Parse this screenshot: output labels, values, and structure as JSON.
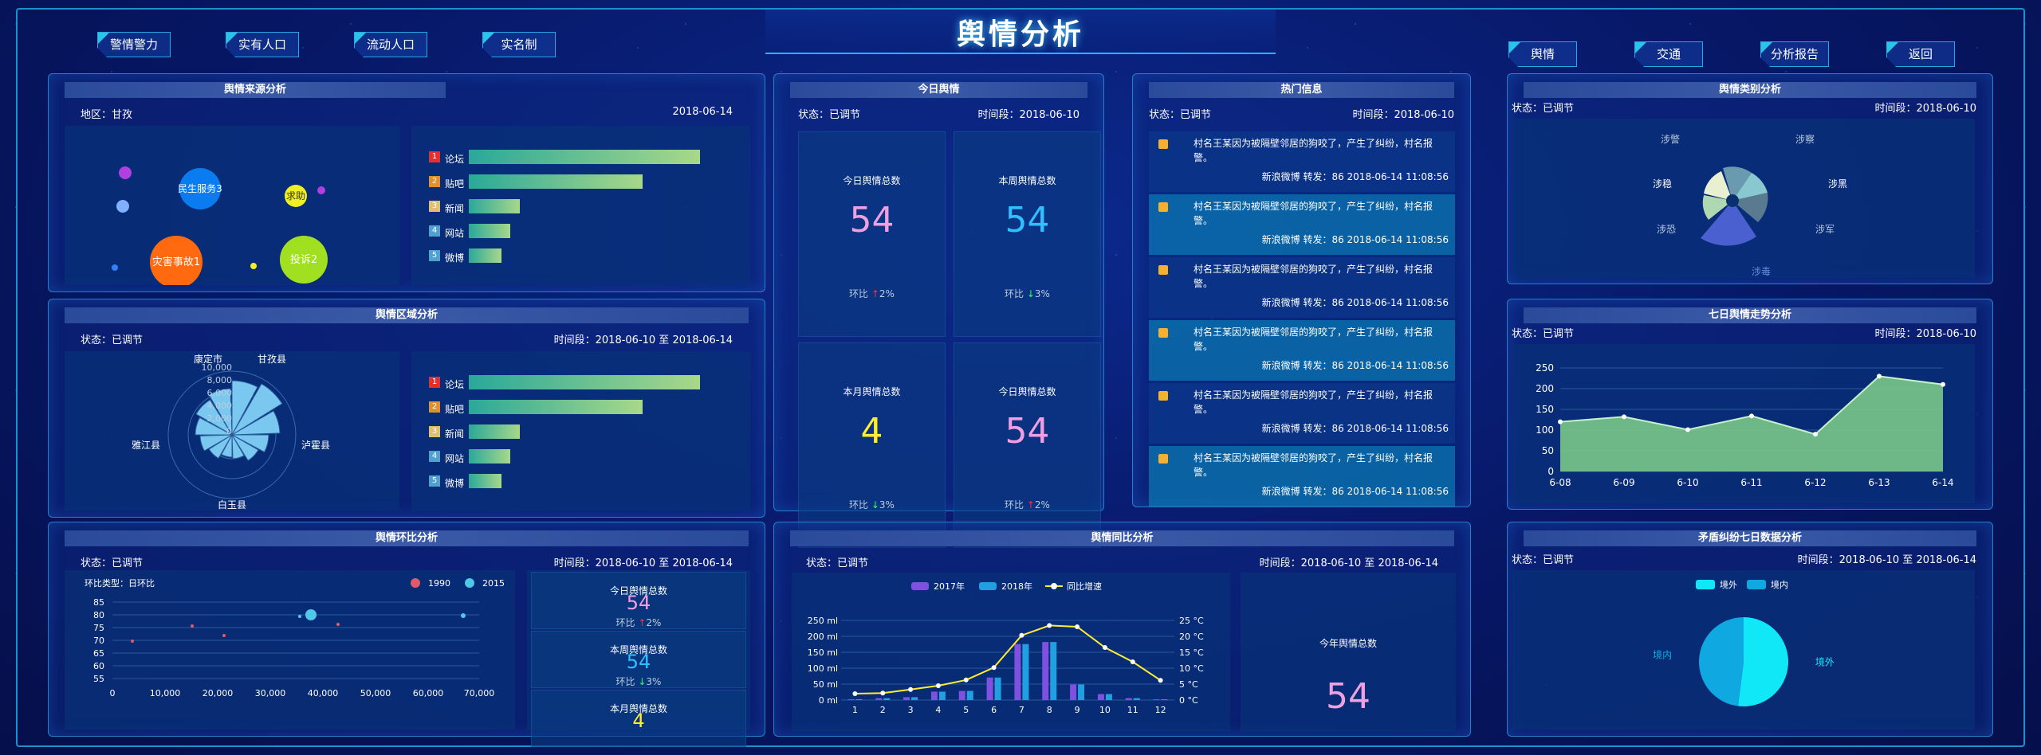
{
  "title": "舆情分析",
  "nav_left": [
    "警情警力",
    "实有人口",
    "流动人口",
    "实名制"
  ],
  "nav_right": [
    "舆情",
    "交通",
    "分析报告",
    "返回"
  ],
  "source": {
    "title": "舆情来源分析",
    "region": "地区：甘孜",
    "date": "2018-06-14",
    "bubbles": [
      "民生服务3",
      "求助",
      "投诉2",
      "灾害事故1"
    ],
    "ranks": [
      "1",
      "2",
      "3",
      "4",
      "5"
    ],
    "channels": [
      "论坛",
      "贴吧",
      "新闻",
      "网站",
      "微博"
    ],
    "bar_values": [
      100,
      75,
      22,
      18,
      14
    ]
  },
  "region": {
    "title": "舆情区域分析",
    "status": "状态：已调节",
    "date": "时间段：2018-06-10 至 2018-06-14",
    "radial_ticks": [
      "10,000",
      "8,000",
      "6,000",
      "4,000",
      "2,000",
      "0"
    ],
    "counties": [
      "康定市",
      "甘孜县",
      "泸霍县",
      "白玉县",
      "雅江县"
    ],
    "ranks": [
      "1",
      "2",
      "3",
      "4",
      "5"
    ],
    "channels": [
      "论坛",
      "贴吧",
      "新闻",
      "网站",
      "微博"
    ],
    "bar_values": [
      100,
      75,
      22,
      18,
      14
    ]
  },
  "ring": {
    "title": "舆情环比分析",
    "status": "状态：已调节",
    "date": "时间段：2018-06-10 至 2018-06-14",
    "subtitle": "环比类型：日环比",
    "legend": [
      "1990",
      "2015"
    ],
    "y_ticks": [
      "85",
      "80",
      "75",
      "70",
      "65",
      "60",
      "55"
    ],
    "x_ticks": [
      "0",
      "10,000",
      "20,000",
      "30,000",
      "40,000",
      "50,000",
      "60,000",
      "70,000"
    ],
    "stats": [
      {
        "label": "今日舆情总数",
        "value": "54",
        "chg": "环比",
        "pct": "2%",
        "dir": "up",
        "color": "#f0a0e0"
      },
      {
        "label": "本周舆情总数",
        "value": "54",
        "chg": "环比",
        "pct": "3%",
        "dir": "down",
        "color": "#30c0ff"
      },
      {
        "label": "本月舆情总数",
        "value": "4",
        "chg": "",
        "pct": "",
        "dir": "",
        "color": "#ffee30"
      }
    ]
  },
  "today": {
    "title": "今日舆情",
    "status": "状态：已调节",
    "date": "时间段：2018-06-10",
    "stats": [
      {
        "label": "今日舆情总数",
        "value": "54",
        "chg": "环比",
        "pct": "2%",
        "dir": "up",
        "color": "#f0a0e0"
      },
      {
        "label": "本周舆情总数",
        "value": "54",
        "chg": "环比",
        "pct": "3%",
        "dir": "down",
        "color": "#30c0ff"
      },
      {
        "label": "本月舆情总数",
        "value": "4",
        "chg": "环比",
        "pct": "3%",
        "dir": "down",
        "color": "#ffee30"
      },
      {
        "label": "今日舆情总数",
        "value": "54",
        "chg": "环比",
        "pct": "2%",
        "dir": "up",
        "color": "#f0a0e0"
      }
    ]
  },
  "hot": {
    "title": "热门信息",
    "status": "状态：已调节",
    "date": "时间段：2018-06-10",
    "items": [
      {
        "text": "村名王某因为被隔壁邻居的狗咬了，产生了纠纷，村名报警。",
        "src": "新浪微博 转发：86 2018-06-14 11:08:56"
      },
      {
        "text": "村名王某因为被隔壁邻居的狗咬了，产生了纠纷，村名报警。",
        "src": "新浪微博 转发：86 2018-06-14 11:08:56"
      },
      {
        "text": "村名王某因为被隔壁邻居的狗咬了，产生了纠纷，村名报警。",
        "src": "新浪微博 转发：86 2018-06-14 11:08:56"
      },
      {
        "text": "村名王某因为被隔壁邻居的狗咬了，产生了纠纷，村名报警。",
        "src": "新浪微博 转发：86 2018-06-14 11:08:56"
      },
      {
        "text": "村名王某因为被隔壁邻居的狗咬了，产生了纠纷，村名报警。",
        "src": "新浪微博 转发：86 2018-06-14 11:08:56"
      },
      {
        "text": "村名王某因为被隔壁邻居的狗咬了，产生了纠纷，村名报警。",
        "src": "新浪微博 转发：86 2018-06-14 11:08:56"
      }
    ]
  },
  "yoy": {
    "title": "舆情同比分析",
    "status": "状态：已调节",
    "date": "时间段：2018-06-10 至 2018-06-14",
    "legend": [
      "2017年",
      "2018年",
      "同比增速"
    ],
    "total_label": "今年舆情总数",
    "total_value": "54"
  },
  "category": {
    "title": "舆情类别分析",
    "status": "状态：已调节",
    "date": "时间段：2018-06-10",
    "labels": [
      "涉警",
      "涉察",
      "涉稳",
      "涉黑",
      "涉军",
      "涉恐",
      "涉毒"
    ]
  },
  "trend": {
    "title": "七日舆情走势分析",
    "status": "状态：已调节",
    "date": "时间段：2018-06-10"
  },
  "conflict": {
    "title": "矛盾纠纷七日数据分析",
    "status": "状态：已调节",
    "date": "时间段：2018-06-10 至 2018-06-14",
    "legend": [
      "境外",
      "境内"
    ]
  },
  "chart_data": [
    {
      "type": "line",
      "title": "七日舆情走势分析",
      "categories": [
        "6-08",
        "6-09",
        "6-10",
        "6-11",
        "6-12",
        "6-13",
        "6-14"
      ],
      "values": [
        120,
        132,
        101,
        134,
        90,
        230,
        210
      ],
      "ylim": [
        0,
        250
      ],
      "y_ticks": [
        0,
        50,
        100,
        150,
        200,
        250
      ],
      "grid": true
    },
    {
      "type": "bar",
      "title": "舆情同比分析",
      "categories": [
        "1",
        "2",
        "3",
        "4",
        "5",
        "6",
        "7",
        "8",
        "9",
        "10",
        "11",
        "12"
      ],
      "series": [
        {
          "name": "2017年",
          "values": [
            2.6,
            5.9,
            9,
            26.4,
            28.7,
            70.7,
            175.6,
            182.2,
            48.7,
            18.8,
            6,
            2.3
          ]
        },
        {
          "name": "2018年",
          "values": [
            2.6,
            5.9,
            9,
            26.4,
            28.7,
            70.7,
            175.6,
            182.2,
            48.7,
            18.8,
            6,
            2.3
          ]
        },
        {
          "name": "同比增速",
          "values": [
            2,
            2.2,
            3.3,
            4.5,
            6.3,
            10.2,
            20.3,
            23.4,
            23,
            16.5,
            12,
            6.2
          ]
        }
      ],
      "y_left_ticks": [
        "0 ml",
        "50 ml",
        "100 ml",
        "150 ml",
        "200 ml",
        "250 ml"
      ],
      "y_right_ticks": [
        "0 °C",
        "5 °C",
        "10 °C",
        "15 °C",
        "20 °C",
        "25 °C"
      ],
      "ylim_left": [
        0,
        250
      ],
      "ylim_right": [
        0,
        25
      ]
    },
    {
      "type": "pie",
      "title": "矛盾纠纷七日数据分析",
      "categories": [
        "境外",
        "境内"
      ],
      "values": [
        52,
        48
      ]
    }
  ]
}
